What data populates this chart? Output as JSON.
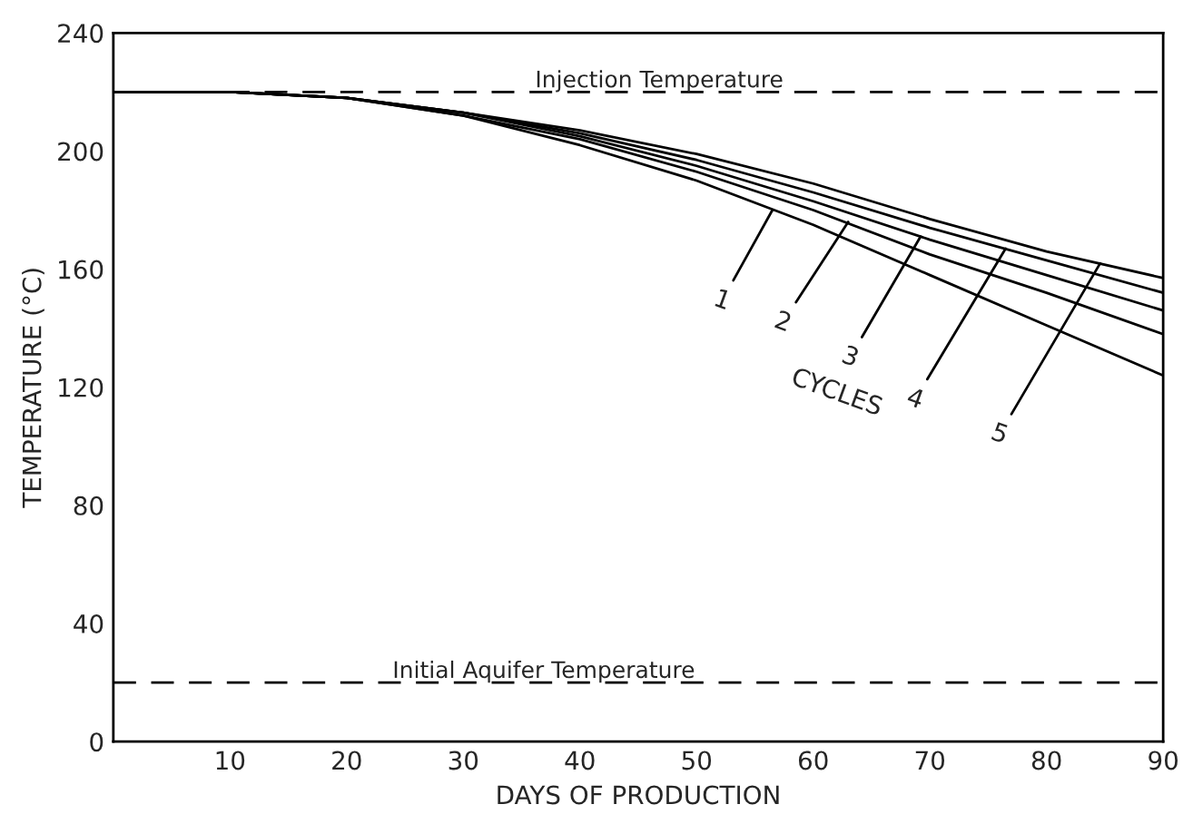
{
  "chart_data": {
    "type": "line",
    "xlabel": "DAYS OF PRODUCTION",
    "ylabel": "TEMPERATURE (°C)",
    "x": [
      0,
      10,
      20,
      30,
      40,
      50,
      60,
      70,
      80,
      90
    ],
    "series": [
      {
        "color": "#000000",
        "values": [
          220,
          220,
          218,
          212,
          202,
          190,
          175,
          158,
          141,
          124
        ]
      },
      {
        "color": "#000000",
        "values": [
          220,
          220,
          218,
          212,
          204,
          193,
          180,
          165,
          152,
          138
        ]
      },
      {
        "color": "#000000",
        "values": [
          220,
          220,
          218,
          213,
          205,
          195,
          183,
          170,
          158,
          146
        ]
      },
      {
        "color": "#000000",
        "values": [
          220,
          220,
          218,
          213,
          206,
          197,
          186,
          174,
          163,
          152
        ]
      },
      {
        "color": "#000000",
        "values": [
          220,
          220,
          218,
          213,
          207,
          199,
          189,
          177,
          166,
          157
        ]
      }
    ],
    "xlim": [
      0,
      90
    ],
    "xticks": [
      10,
      20,
      30,
      40,
      50,
      60,
      70,
      80,
      90
    ],
    "ylim": [
      0,
      240
    ],
    "yticks": [
      0,
      40,
      80,
      120,
      160,
      200,
      240
    ],
    "ref_lines": [
      {
        "axis": "y",
        "value": 220,
        "label": "Injection Temperature",
        "color": "#000000",
        "line_style": "dashed"
      },
      {
        "axis": "y",
        "value": 20,
        "label": "Initial Aquifer Temperature",
        "color": "#000000",
        "line_style": "dashed"
      }
    ],
    "annotations": [
      {
        "text": "1",
        "x": 56.5,
        "y": 180
      },
      {
        "text": "2",
        "x": 63,
        "y": 176
      },
      {
        "text": "3",
        "x": 69.2,
        "y": 171
      },
      {
        "text": "4",
        "x": 76.5,
        "y": 167
      },
      {
        "text": "5",
        "x": 84.6,
        "y": 162
      },
      "CYCLES"
    ],
    "grid": false,
    "legend": false,
    "line_style": "solid",
    "marker": "none"
  }
}
